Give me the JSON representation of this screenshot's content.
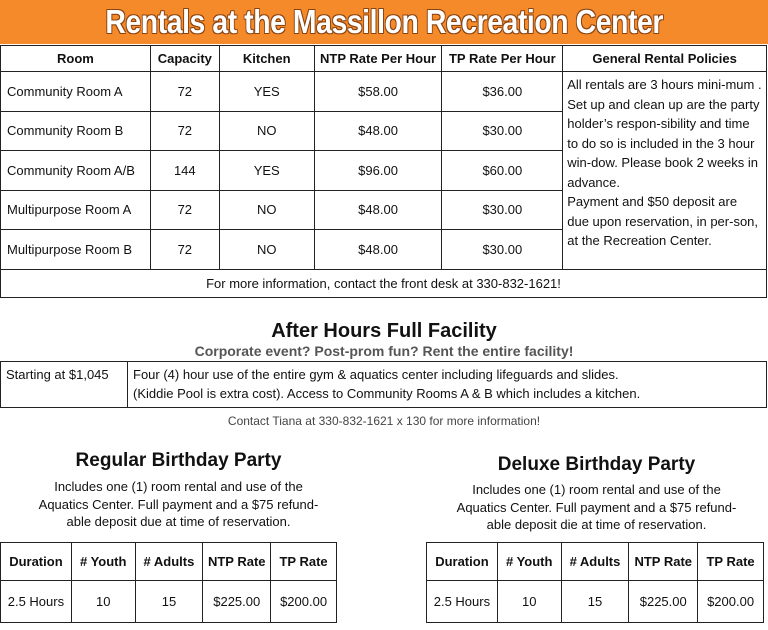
{
  "header": {
    "title": "Rentals at the Massillon Recreation Center"
  },
  "rentals": {
    "columns": [
      "Room",
      "Capacity",
      "Kitchen",
      "NTP Rate Per Hour",
      "TP Rate Per Hour",
      "General Rental Policies"
    ],
    "rows": [
      {
        "room": "Community Room A",
        "capacity": "72",
        "kitchen": "YES",
        "ntp": "$58.00",
        "tp": "$36.00"
      },
      {
        "room": "Community Room B",
        "capacity": "72",
        "kitchen": "NO",
        "ntp": "$48.00",
        "tp": "$30.00"
      },
      {
        "room": "Community Room A/B",
        "capacity": "144",
        "kitchen": "YES",
        "ntp": "$96.00",
        "tp": "$60.00"
      },
      {
        "room": "Multipurpose Room A",
        "capacity": "72",
        "kitchen": "NO",
        "ntp": "$48.00",
        "tp": "$30.00"
      },
      {
        "room": "Multipurpose Room B",
        "capacity": "72",
        "kitchen": "NO",
        "ntp": "$48.00",
        "tp": "$30.00"
      }
    ],
    "policy_1": "All rentals are 3 hours mini-mum . Set up and clean up are the party holder’s respon-sibility and time to do so is included in the 3 hour win-dow. Please book 2 weeks in advance.",
    "policy_2": "Payment and $50 deposit are due upon reservation, in per-son, at the Recreation Center.",
    "contact": "For more information, contact the front desk at 330-832-1621!"
  },
  "after_hours": {
    "title": "After Hours Full Facility",
    "subtitle": "Corporate event? Post-prom fun? Rent the entire facility!",
    "price": "Starting at $1,045",
    "description_1": "Four (4) hour use of the entire gym & aquatics center including lifeguards and slides.",
    "description_2": "(Kiddie Pool is extra cost). Access to Community Rooms A & B which includes a kitchen.",
    "contact": "Contact Tiana at 330-832-1621 x 130 for more information!"
  },
  "regular_birthday": {
    "title": "Regular Birthday Party",
    "desc_1": "Includes one (1) room rental and use of the",
    "desc_2": "Aquatics Center. Full payment and a $75 refund-",
    "desc_3": "able deposit due at time of reservation.",
    "columns": [
      "Duration",
      "# Youth",
      "# Adults",
      "NTP Rate",
      "TP Rate"
    ],
    "row": {
      "duration": "2.5 Hours",
      "youth": "10",
      "adults": "15",
      "ntp": "$225.00",
      "tp": "$200.00"
    }
  },
  "deluxe_birthday": {
    "title": "Deluxe Birthday Party",
    "desc_1": "Includes one (1) room rental and use of the",
    "desc_2": "Aquatics Center. Full payment and a $75 refund-",
    "desc_3": "able deposit die at time of reservation.",
    "columns": [
      "Duration",
      "# Youth",
      "# Adults",
      "NTP Rate",
      "TP Rate"
    ],
    "row": {
      "duration": "2.5 Hours",
      "youth": "10",
      "adults": "15",
      "ntp": "$225.00",
      "tp": "$200.00"
    }
  },
  "colors": {
    "banner": "#f58a2a",
    "banner_text": "#ffffff"
  }
}
